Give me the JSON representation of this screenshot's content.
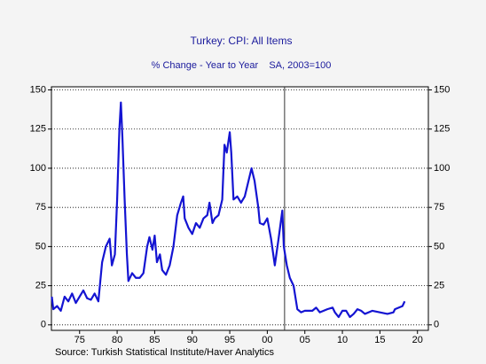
{
  "chart_data": {
    "type": "line",
    "title": "Turkey: CPI: All Items",
    "subtitle": "% Change - Year to Year    SA, 2003=100",
    "source": "Source:  Turkish Statistical Institute/Haver Analytics",
    "xlim": [
      1971.25,
      2021.45
    ],
    "ylim": [
      -3.5,
      152
    ],
    "y2lim": [
      -3.5,
      152
    ],
    "xticks": [
      {
        "value": 1975,
        "label": "75"
      },
      {
        "value": 1980,
        "label": "80"
      },
      {
        "value": 1985,
        "label": "85"
      },
      {
        "value": 1990,
        "label": "90"
      },
      {
        "value": 1995,
        "label": "95"
      },
      {
        "value": 2000,
        "label": "00"
      },
      {
        "value": 2005,
        "label": "05"
      },
      {
        "value": 2010,
        "label": "10"
      },
      {
        "value": 2015,
        "label": "15"
      },
      {
        "value": 2020,
        "label": "20"
      }
    ],
    "yticks": [
      0,
      25,
      50,
      75,
      100,
      125,
      150
    ],
    "y2ticks": [
      0,
      25,
      50,
      75,
      100,
      125,
      150
    ],
    "grid": true,
    "vline": 2002.3,
    "series": [
      {
        "name": "Turkey CPI",
        "color": "#1414d2",
        "x": [
          1971.3,
          1971.5,
          1972,
          1972.5,
          1973,
          1973.5,
          1974,
          1974.5,
          1975,
          1975.5,
          1976,
          1976.5,
          1977,
          1977.5,
          1978,
          1978.5,
          1979,
          1979.3,
          1979.7,
          1980,
          1980.3,
          1980.5,
          1980.7,
          1981,
          1981.3,
          1981.5,
          1982,
          1982.5,
          1983,
          1983.5,
          1984,
          1984.3,
          1984.7,
          1985,
          1985.3,
          1985.7,
          1986,
          1986.5,
          1987,
          1987.5,
          1988,
          1988.5,
          1988.8,
          1989,
          1989.5,
          1990,
          1990.5,
          1991,
          1991.5,
          1992,
          1992.3,
          1992.7,
          1993,
          1993.5,
          1994,
          1994.3,
          1994.6,
          1995,
          1995.2,
          1995.5,
          1996,
          1996.5,
          1997,
          1997.5,
          1997.9,
          1998.3,
          1998.8,
          1999,
          1999.5,
          2000,
          2000.5,
          2001,
          2001.5,
          2002,
          2002.2,
          2002.6,
          2003,
          2003.5,
          2004,
          2004.5,
          2005,
          2006,
          2006.5,
          2007,
          2008,
          2008.7,
          2009,
          2009.5,
          2010,
          2010.5,
          2011,
          2011.5,
          2012,
          2012.5,
          2013,
          2014,
          2015,
          2016,
          2016.8,
          2017,
          2017.5,
          2018,
          2018.3
        ],
        "values": [
          18,
          10,
          12,
          9,
          18,
          15,
          20,
          14,
          18,
          22,
          17,
          16,
          20,
          15,
          40,
          50,
          55,
          38,
          45,
          80,
          125,
          142,
          120,
          80,
          45,
          28,
          33,
          30,
          30,
          33,
          50,
          56,
          48,
          57,
          40,
          45,
          35,
          32,
          38,
          50,
          70,
          78,
          82,
          68,
          62,
          58,
          65,
          62,
          68,
          70,
          78,
          65,
          68,
          70,
          80,
          115,
          110,
          123,
          110,
          80,
          82,
          78,
          82,
          92,
          100,
          92,
          75,
          65,
          64,
          68,
          55,
          38,
          55,
          73,
          50,
          38,
          30,
          25,
          10,
          8,
          9,
          9,
          11,
          8,
          10,
          11,
          8,
          5,
          9,
          9,
          5,
          7,
          10,
          9,
          7,
          9,
          8,
          7,
          8,
          10,
          11,
          12,
          15
        ]
      }
    ]
  }
}
